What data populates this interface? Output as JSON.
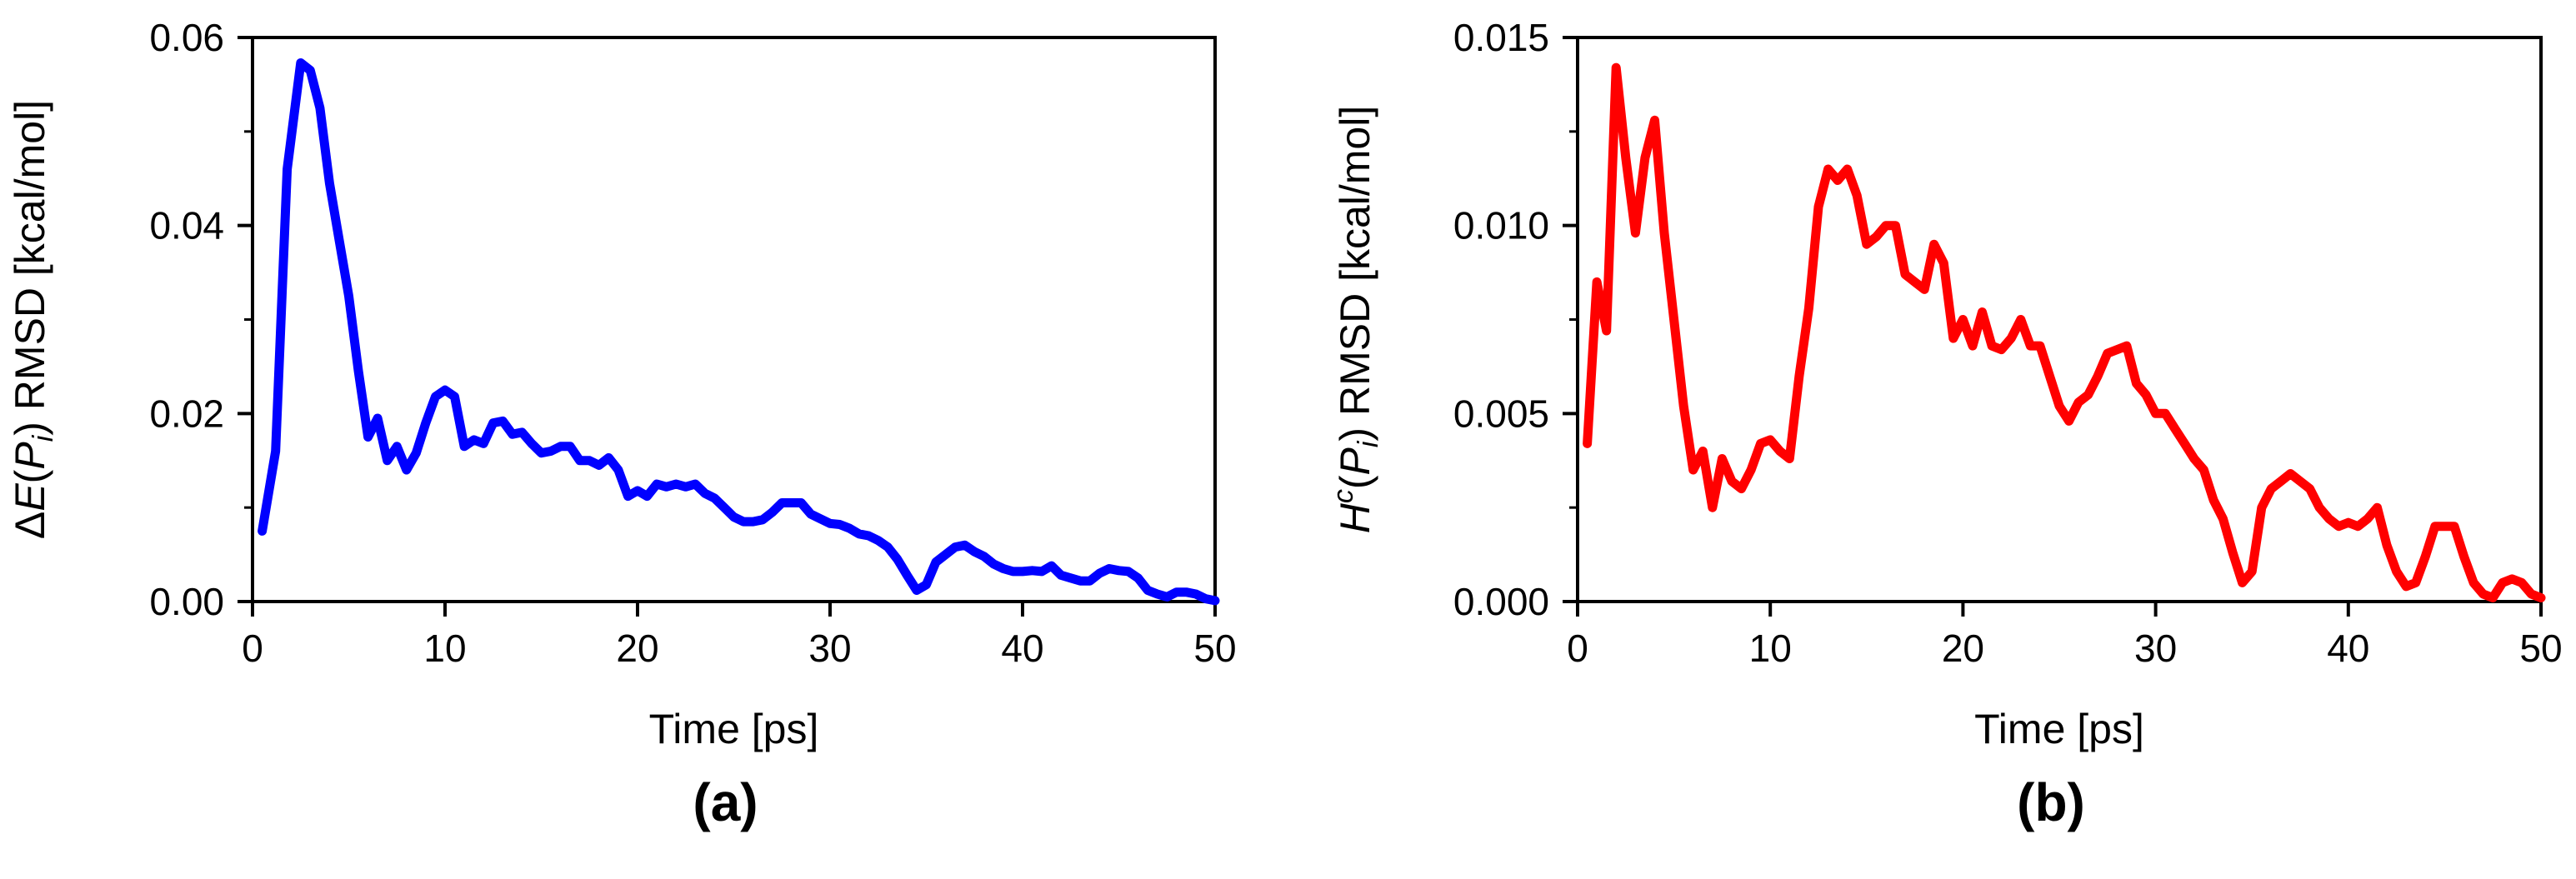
{
  "chart_data": [
    {
      "type": "line",
      "panel_label": "(a)",
      "xlabel": "Time [ps]",
      "ylabel": {
        "prefix": "ΔE(",
        "var": "P",
        "sub": "i",
        "suffix": ") RMSD [kcal/mol]"
      },
      "xlim": [
        0,
        50
      ],
      "ylim": [
        0,
        0.06
      ],
      "xticks": [
        "0",
        "10",
        "20",
        "30",
        "40",
        "50"
      ],
      "xtick_values": [
        0,
        10,
        20,
        30,
        40,
        50
      ],
      "yticks": [
        "0.00",
        "0.02",
        "0.04",
        "0.06"
      ],
      "ytick_values": [
        0,
        0.02,
        0.04,
        0.06
      ],
      "y_minor_ticks": [
        0.01,
        0.03,
        0.05
      ],
      "grid": false,
      "series": [
        {
          "color": "#0000ff",
          "x": [
            0.5,
            1.2,
            1.8,
            2.5,
            3.0,
            3.5,
            4.0,
            4.5,
            5.0,
            5.5,
            6.0,
            6.5,
            7.0,
            7.5,
            8.0,
            8.5,
            9.0,
            9.5,
            10.0,
            10.5,
            11.0,
            11.5,
            12.0,
            12.5,
            13.0,
            13.5,
            14.0,
            14.5,
            15.0,
            15.5,
            16.0,
            16.5,
            17.0,
            17.5,
            18.0,
            18.5,
            19.0,
            19.5,
            20.0,
            20.5,
            21.0,
            21.5,
            22.0,
            22.5,
            23.0,
            23.5,
            24.0,
            24.5,
            25.0,
            25.5,
            26.0,
            26.5,
            27.0,
            27.5,
            28.0,
            28.5,
            29.0,
            29.5,
            30.0,
            30.5,
            31.0,
            31.5,
            32.0,
            32.5,
            33.0,
            33.5,
            34.0,
            34.5,
            35.0,
            35.5,
            36.0,
            36.5,
            37.0,
            37.5,
            38.0,
            38.5,
            39.0,
            39.5,
            40.0,
            40.5,
            41.0,
            41.5,
            42.0,
            42.5,
            43.0,
            43.5,
            44.0,
            44.5,
            45.0,
            45.5,
            46.0,
            46.5,
            47.0,
            47.5,
            48.0,
            48.5,
            49.0,
            49.5,
            50.0
          ],
          "y": [
            0.0075,
            0.016,
            0.046,
            0.0573,
            0.0565,
            0.0525,
            0.0445,
            0.0385,
            0.0325,
            0.0245,
            0.0175,
            0.0195,
            0.015,
            0.0165,
            0.014,
            0.0158,
            0.019,
            0.0218,
            0.0225,
            0.0218,
            0.0165,
            0.0172,
            0.0168,
            0.019,
            0.0192,
            0.0178,
            0.018,
            0.0168,
            0.0158,
            0.016,
            0.0165,
            0.0165,
            0.015,
            0.015,
            0.0145,
            0.0153,
            0.014,
            0.0112,
            0.0118,
            0.0112,
            0.0125,
            0.0122,
            0.0125,
            0.0122,
            0.0125,
            0.0115,
            0.011,
            0.01,
            0.009,
            0.0085,
            0.0085,
            0.0087,
            0.0095,
            0.0105,
            0.0105,
            0.0105,
            0.0093,
            0.0088,
            0.0083,
            0.0082,
            0.0078,
            0.0072,
            0.007,
            0.0065,
            0.0058,
            0.0045,
            0.0028,
            0.0012,
            0.0018,
            0.0042,
            0.005,
            0.0058,
            0.006,
            0.0053,
            0.0048,
            0.004,
            0.0035,
            0.0032,
            0.0032,
            0.0033,
            0.0032,
            0.0038,
            0.0028,
            0.0025,
            0.0022,
            0.0022,
            0.003,
            0.0035,
            0.0033,
            0.0032,
            0.0025,
            0.0012,
            0.0008,
            0.0005,
            0.001,
            0.001,
            0.0008,
            0.0003,
            0.0001
          ]
        }
      ]
    },
    {
      "type": "line",
      "panel_label": "(b)",
      "xlabel": "Time [ps]",
      "ylabel": {
        "prefix": "",
        "var": "H",
        "sup": "c",
        "paren_open": "(",
        "var2": "P",
        "sub": "i",
        "suffix": ") RMSD [kcal/mol]"
      },
      "xlim": [
        0,
        50
      ],
      "ylim": [
        0,
        0.015
      ],
      "xticks": [
        "0",
        "10",
        "20",
        "30",
        "40",
        "50"
      ],
      "xtick_values": [
        0,
        10,
        20,
        30,
        40,
        50
      ],
      "yticks": [
        "0.000",
        "0.005",
        "0.010",
        "0.015"
      ],
      "ytick_values": [
        0,
        0.005,
        0.01,
        0.015
      ],
      "y_minor_ticks": [
        0.0025,
        0.0075,
        0.0125
      ],
      "grid": false,
      "series": [
        {
          "color": "#ff0000",
          "x": [
            0.5,
            1.0,
            1.5,
            2.0,
            2.5,
            3.0,
            3.5,
            4.0,
            4.5,
            5.0,
            5.5,
            6.0,
            6.5,
            7.0,
            7.5,
            8.0,
            8.5,
            9.0,
            9.5,
            10.0,
            10.5,
            11.0,
            11.5,
            12.0,
            12.5,
            13.0,
            13.5,
            14.0,
            14.5,
            15.0,
            15.5,
            16.0,
            16.5,
            17.0,
            17.5,
            18.0,
            18.5,
            19.0,
            19.5,
            20.0,
            20.5,
            21.0,
            21.5,
            22.0,
            22.5,
            23.0,
            23.5,
            24.0,
            24.5,
            25.0,
            25.5,
            26.0,
            26.5,
            27.0,
            27.5,
            28.0,
            28.5,
            29.0,
            29.5,
            30.0,
            30.5,
            31.0,
            31.5,
            32.0,
            32.5,
            33.0,
            33.5,
            34.0,
            34.5,
            35.0,
            35.5,
            36.0,
            36.5,
            37.0,
            37.5,
            38.0,
            38.5,
            39.0,
            39.5,
            40.0,
            40.5,
            41.0,
            41.5,
            42.0,
            42.5,
            43.0,
            43.5,
            44.0,
            44.5,
            45.0,
            45.5,
            46.0,
            46.5,
            47.0,
            47.5,
            48.0,
            48.5,
            49.0,
            49.5,
            50.0
          ],
          "y": [
            0.0042,
            0.0085,
            0.0072,
            0.0142,
            0.0118,
            0.0098,
            0.0118,
            0.0128,
            0.0098,
            0.0075,
            0.0052,
            0.0035,
            0.004,
            0.0025,
            0.0038,
            0.0032,
            0.003,
            0.0035,
            0.0042,
            0.0043,
            0.004,
            0.0038,
            0.006,
            0.0078,
            0.0105,
            0.0115,
            0.0112,
            0.0115,
            0.0108,
            0.0095,
            0.0097,
            0.01,
            0.01,
            0.0087,
            0.0085,
            0.0083,
            0.0095,
            0.009,
            0.007,
            0.0075,
            0.0068,
            0.0077,
            0.0068,
            0.0067,
            0.007,
            0.0075,
            0.0068,
            0.0068,
            0.006,
            0.0052,
            0.0048,
            0.0053,
            0.0055,
            0.006,
            0.0066,
            0.0067,
            0.0068,
            0.0058,
            0.0055,
            0.005,
            0.005,
            0.0046,
            0.0042,
            0.0038,
            0.0035,
            0.0027,
            0.0022,
            0.0013,
            0.0005,
            0.0008,
            0.0025,
            0.003,
            0.0032,
            0.0034,
            0.0032,
            0.003,
            0.0025,
            0.0022,
            0.002,
            0.0021,
            0.002,
            0.0022,
            0.0025,
            0.0015,
            0.0008,
            0.0004,
            0.0005,
            0.0012,
            0.002,
            0.002,
            0.002,
            0.0012,
            0.0005,
            0.0002,
            0.0001,
            0.0005,
            0.0006,
            0.0005,
            0.0002,
            0.0001
          ]
        }
      ]
    }
  ]
}
